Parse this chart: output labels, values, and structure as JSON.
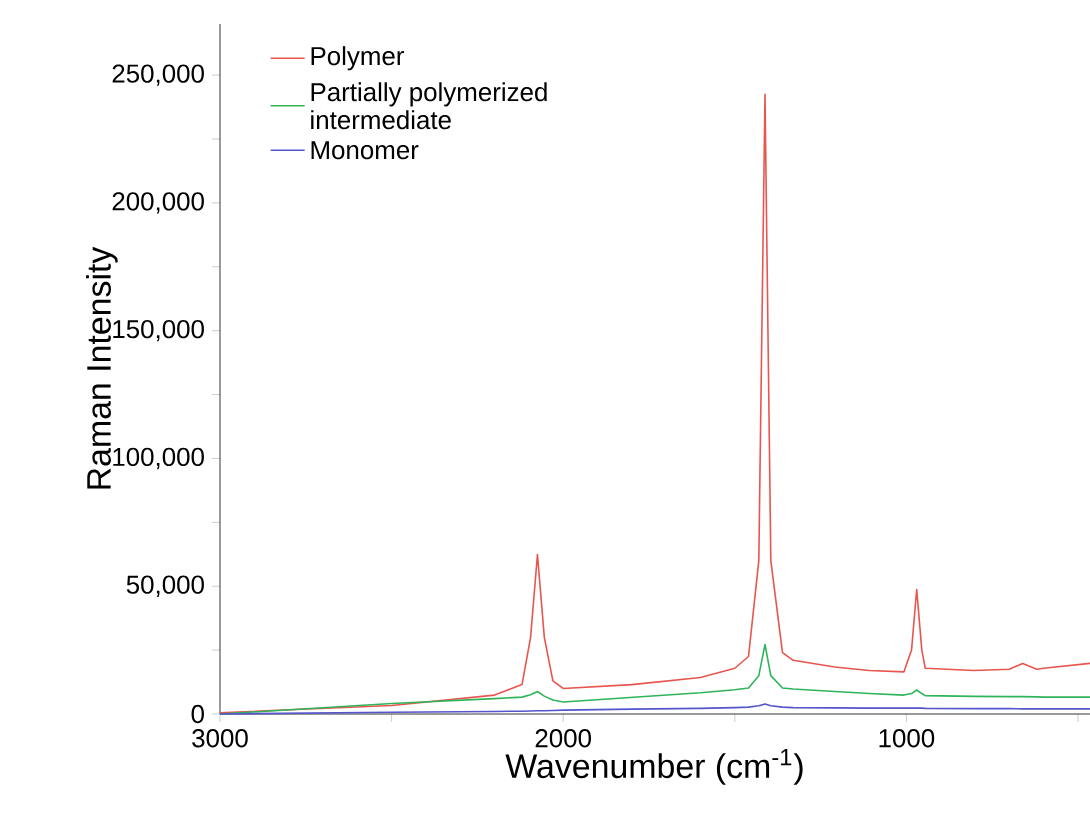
{
  "chart_data": {
    "type": "line",
    "xlabel": "Wavenumber (cm$^{-1}$)",
    "ylabel": "Raman Intensity",
    "xlim": [
      3000,
      465
    ],
    "ylim": [
      0,
      270000
    ],
    "xticks": [
      3000,
      {
        "value": 2500,
        "label": null
      },
      2000,
      {
        "value": 1500,
        "label": null
      },
      1000,
      {
        "value": 500,
        "label": null
      }
    ],
    "yticks": [
      {
        "value": 0,
        "label": "0"
      },
      {
        "value": 25000,
        "label": null
      },
      {
        "value": 50000,
        "label": "50,000"
      },
      {
        "value": 75000,
        "label": null
      },
      {
        "value": 100000,
        "label": "100,000"
      },
      {
        "value": 125000,
        "label": null
      },
      {
        "value": 150000,
        "label": "150,000"
      },
      {
        "value": 175000,
        "label": null
      },
      {
        "value": 200000,
        "label": "200,000"
      },
      {
        "value": 225000,
        "label": null
      },
      {
        "value": 250000,
        "label": "250,000"
      }
    ],
    "legend": "top left",
    "x": [
      3000,
      2500,
      2200,
      2120,
      2095,
      2075,
      2055,
      2030,
      2000,
      1800,
      1600,
      1500,
      1460,
      1430,
      1412,
      1395,
      1361,
      1330,
      1209,
      1108,
      1007,
      985,
      970,
      955,
      945,
      803,
      700,
      661,
      620,
      600,
      465
    ],
    "series": [
      {
        "name": "Polymer",
        "color": "#e8554e",
        "values": [
          500,
          3300,
          7400,
          11500,
          30000,
          62400,
          30000,
          13000,
          10000,
          11500,
          14300,
          17900,
          22500,
          60000,
          242500,
          60000,
          24000,
          21000,
          18400,
          17000,
          16500,
          25000,
          48700,
          25000,
          17900,
          17000,
          17500,
          19800,
          17500,
          17900,
          19800
        ]
      },
      {
        "name": "Partially polymerized intermediate",
        "color": "#2fb45a",
        "values": [
          0,
          4100,
          6000,
          6600,
          7500,
          8800,
          7000,
          5500,
          4700,
          6500,
          8300,
          9500,
          10200,
          15000,
          27200,
          15000,
          10200,
          9800,
          8800,
          8000,
          7400,
          8000,
          9400,
          8000,
          7200,
          6900,
          6800,
          6800,
          6700,
          6600,
          6600
        ]
      },
      {
        "name": "Monomer",
        "color": "#5555cc",
        "values": [
          0,
          700,
          1000,
          1100,
          1200,
          1300,
          1300,
          1400,
          1500,
          1900,
          2200,
          2500,
          2700,
          3200,
          3900,
          3200,
          2700,
          2500,
          2400,
          2300,
          2300,
          2300,
          2300,
          2300,
          2200,
          2100,
          2100,
          2000,
          2000,
          2000,
          2000
        ]
      }
    ]
  }
}
